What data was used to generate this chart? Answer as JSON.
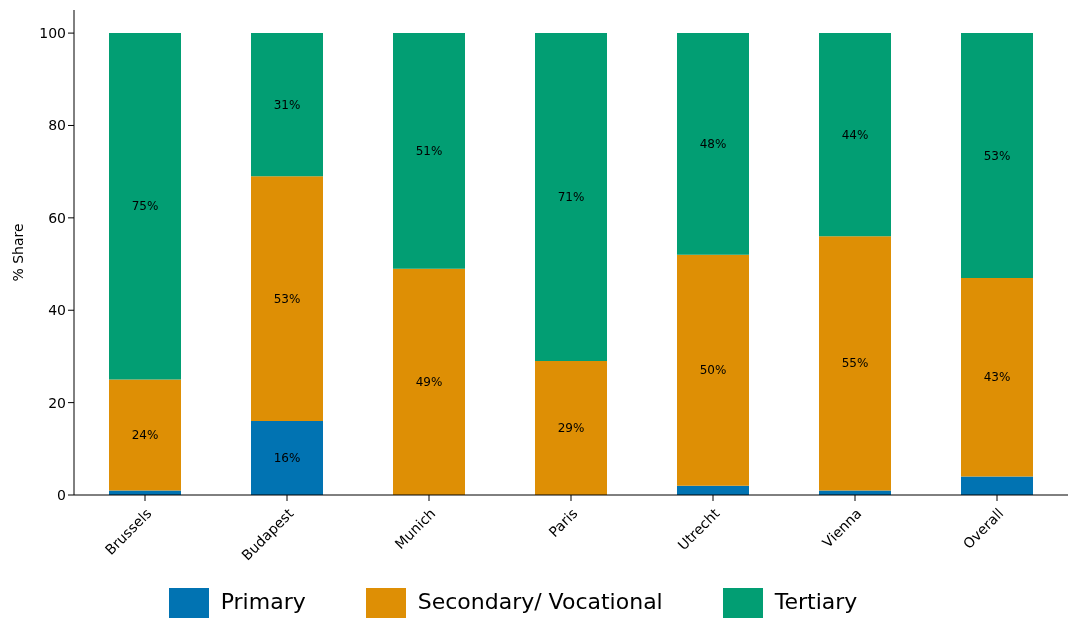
{
  "chart_data": {
    "type": "bar",
    "stacked": true,
    "ylabel": "% Share",
    "categories": [
      "Brussels",
      "Budapest",
      "Munich",
      "Paris",
      "Utrecht",
      "Vienna",
      "Overall"
    ],
    "series": [
      {
        "name": "Primary",
        "color": "#0173b2",
        "values": [
          1,
          16,
          0,
          0,
          2,
          1,
          4
        ],
        "value_labels": [
          null,
          "16%",
          null,
          null,
          null,
          null,
          null
        ]
      },
      {
        "name": "Secondary/ Vocational",
        "color": "#de8f05",
        "values": [
          24,
          53,
          49,
          29,
          50,
          55,
          43
        ],
        "value_labels": [
          "24%",
          "53%",
          "49%",
          "29%",
          "50%",
          "55%",
          "43%"
        ]
      },
      {
        "name": "Tertiary",
        "color": "#029e73",
        "values": [
          75,
          31,
          51,
          71,
          48,
          44,
          53
        ],
        "value_labels": [
          "75%",
          "31%",
          "51%",
          "71%",
          "48%",
          "44%",
          "53%"
        ]
      }
    ],
    "ylim": [
      0,
      105
    ],
    "yticks": [
      0,
      20,
      40,
      60,
      80,
      100
    ],
    "grid": false,
    "legend": "bottom"
  }
}
